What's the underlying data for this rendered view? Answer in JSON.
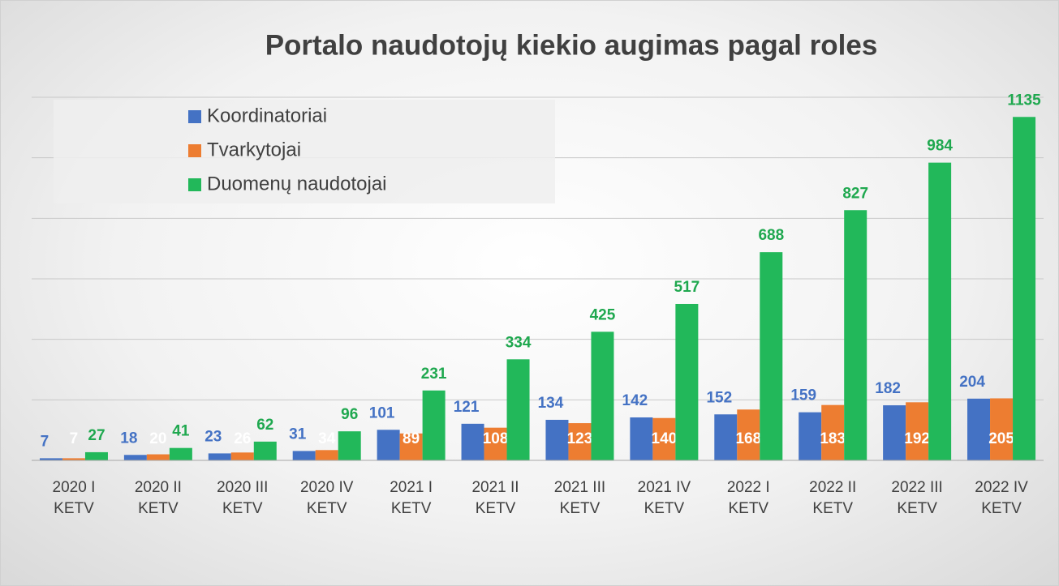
{
  "chart_data": {
    "type": "bar",
    "title": "Portalo naudotojų kiekio augimas pagal roles",
    "categories": [
      "2020 I KETV",
      "2020 II KETV",
      "2020 III KETV",
      "2020 IV KETV",
      "2021 I KETV",
      "2021 II KETV",
      "2021 III KETV",
      "2021 IV KETV",
      "2022 I KETV",
      "2022 II KETV",
      "2022 III KETV",
      "2022 IV KETV"
    ],
    "series": [
      {
        "name": "Koordinatoriai",
        "color": "#4472c4",
        "values": [
          7,
          18,
          23,
          31,
          101,
          121,
          134,
          142,
          152,
          159,
          182,
          204
        ]
      },
      {
        "name": "Tvarkytojai",
        "color": "#ed7d31",
        "values": [
          7,
          20,
          26,
          34,
          89,
          108,
          123,
          140,
          168,
          183,
          192,
          205
        ]
      },
      {
        "name": "Duomenų naudotojai",
        "color": "#22b85a",
        "values": [
          27,
          41,
          62,
          96,
          231,
          334,
          425,
          517,
          688,
          827,
          984,
          1135
        ]
      }
    ],
    "ylim": [
      0,
      1200
    ],
    "yticks": [
      0,
      200,
      400,
      600,
      800,
      1000,
      1200
    ],
    "grid": true,
    "legend": "top-left"
  }
}
